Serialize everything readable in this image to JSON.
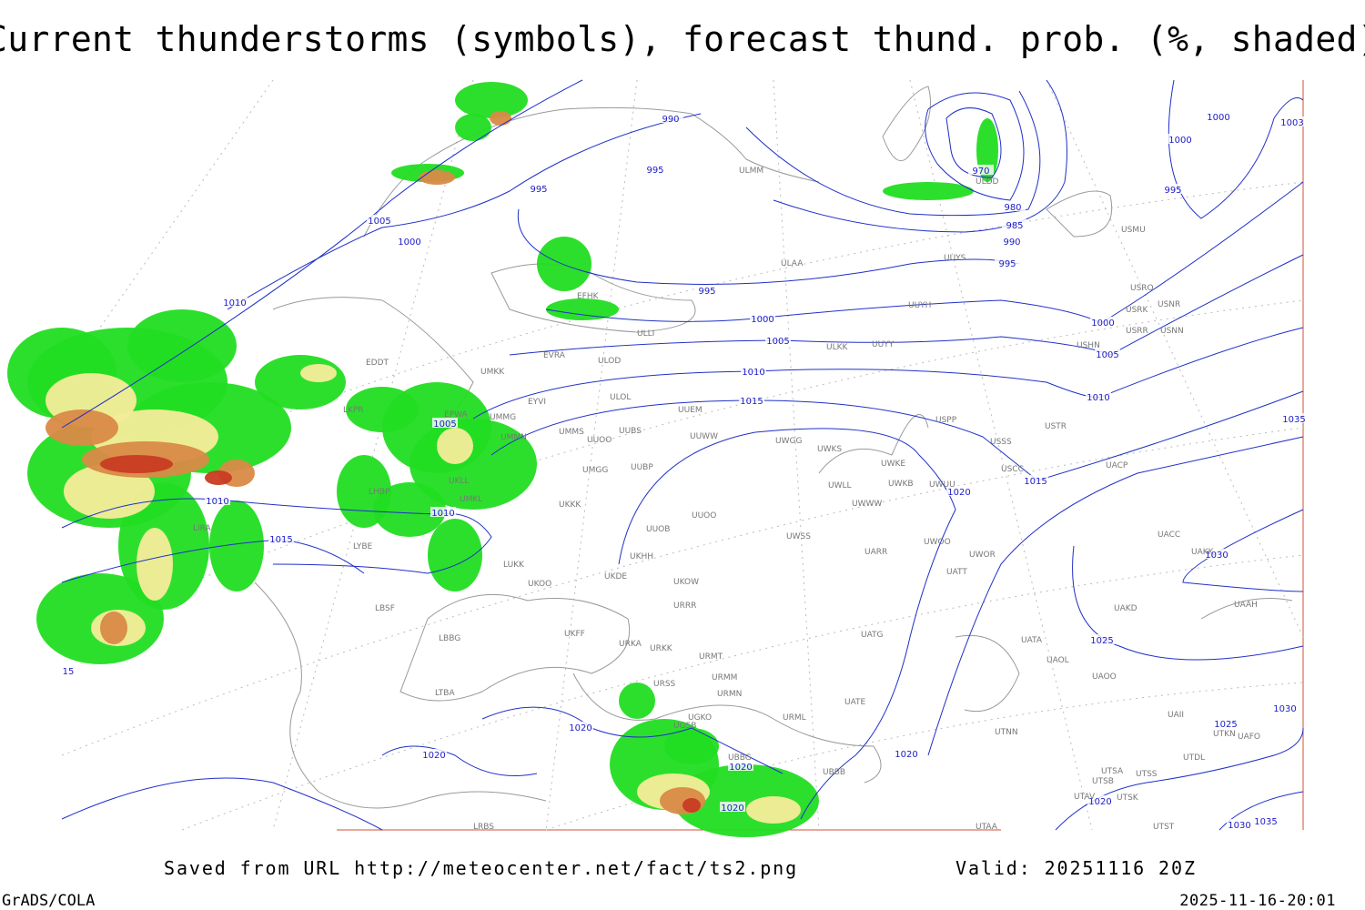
{
  "title": "Current thunderstorms (symbols), forecast thund. prob. (%, shaded)",
  "footer": {
    "source": "Saved from URL http://meteocenter.net/fact/ts2.png",
    "valid": "Valid: 20251116 20Z",
    "software": "GrADS/COLA",
    "timestamp": "2025-11-16-20:01"
  },
  "isobar_labels": [
    990,
    995,
    995,
    1005,
    1000,
    1010,
    970,
    980,
    985,
    990,
    995,
    995,
    1000,
    1005,
    1010,
    1015,
    1005,
    1010,
    1010,
    1015,
    1020,
    1015,
    1000,
    1000,
    995,
    1000,
    1005,
    1010,
    1030,
    1025,
    1030,
    1025,
    1020,
    1020,
    1020,
    1020,
    1020,
    1020,
    1030,
    1035,
    1035,
    1003,
    15
  ],
  "station_labels": [
    "ULDD",
    "ULMM",
    "ULAA",
    "UUYS",
    "USMU",
    "USRO",
    "USRK",
    "USNR",
    "USRR",
    "USNN",
    "USHN",
    "UUYH",
    "UUYY",
    "ULKK",
    "EFHK",
    "ULLI",
    "EVRA",
    "ULOD",
    "UMKK",
    "ULOL",
    "UUEM",
    "UMMS",
    "UUOO",
    "UUBS",
    "UUWW",
    "UWGG",
    "UWKS",
    "UMGG",
    "UUBP",
    "UKKK",
    "UUOO",
    "UUOB",
    "UWKE",
    "UWKB",
    "UWUU",
    "USSS",
    "USTR",
    "USCC",
    "UACP",
    "USPP",
    "UWLL",
    "UWWW",
    "UWSS",
    "UARR",
    "UWOO",
    "UWOR",
    "UATT",
    "UKOO",
    "UKDE",
    "UKHH",
    "UKOW",
    "URRR",
    "UKFF",
    "URKA",
    "URKK",
    "URMT",
    "URSS",
    "URMM",
    "URMN",
    "UGKO",
    "UGSB",
    "UBBG",
    "URML",
    "UBBB",
    "UATE",
    "UATG",
    "UAII",
    "UACC",
    "UAKK",
    "UAKD",
    "UAAH",
    "UATA",
    "UAOL",
    "UAOO",
    "UTNN",
    "UTSA",
    "UTSB",
    "UTSS",
    "UTAV",
    "UTSK",
    "UTST",
    "UTAA",
    "UTDL",
    "UAFO",
    "UTKN",
    "LBSF",
    "LBBG",
    "LTBA",
    "LRBS",
    "LYBE",
    "LHBP",
    "LKPR",
    "EPWA",
    "UMMG",
    "UMKL",
    "UKLL",
    "LUKK",
    "EYVI",
    "UMMN",
    "EDDT",
    "LIRA"
  ]
}
